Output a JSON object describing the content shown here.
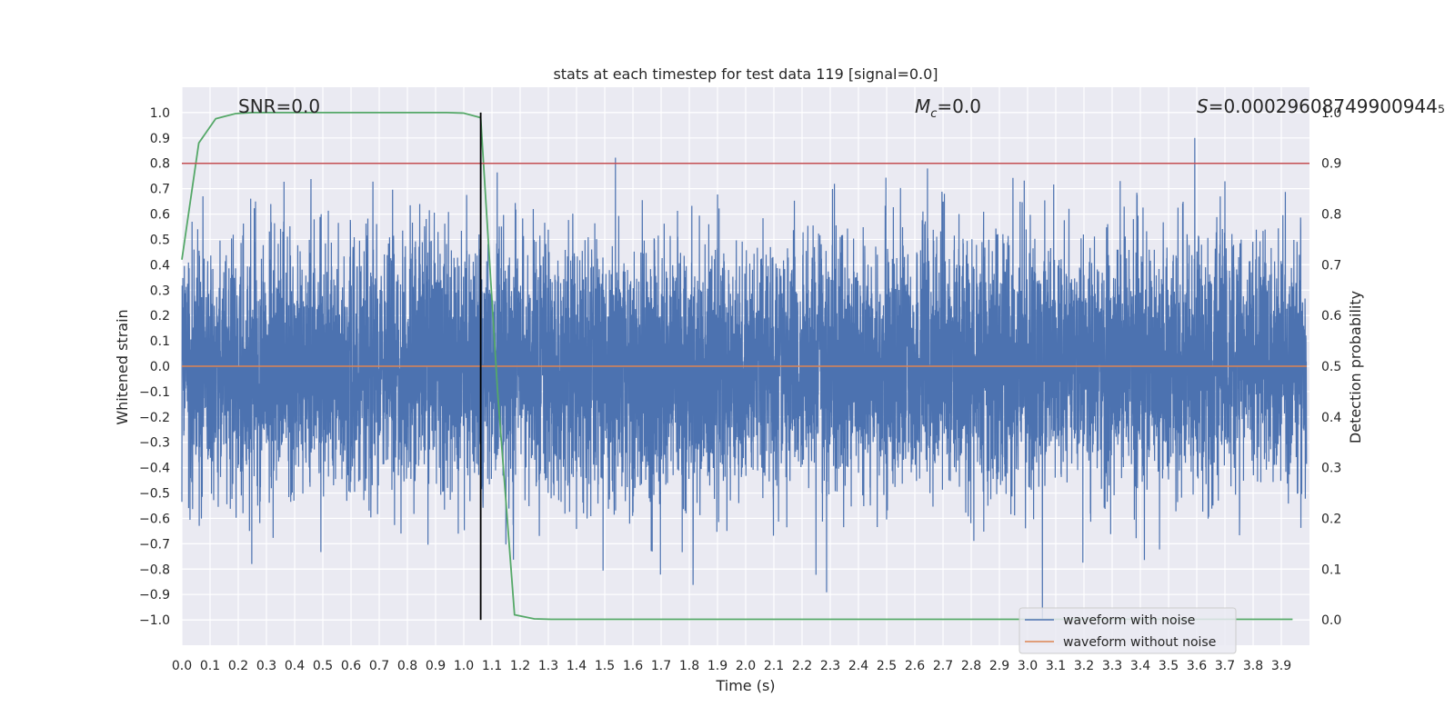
{
  "chart_data": {
    "type": "line",
    "title": "stats at each timestep for test data 119 [signal=0.0]",
    "xlabel": "Time (s)",
    "ylabel": "Whitened strain",
    "ylabel_right": "Detection probability",
    "xlim": [
      0.0,
      4.0
    ],
    "ylim": [
      -1.1,
      1.1
    ],
    "ylim_right": [
      -0.05,
      1.05
    ],
    "x_ticks": [
      0.0,
      0.1,
      0.2,
      0.3,
      0.4,
      0.5,
      0.6,
      0.7,
      0.8,
      0.9,
      1.0,
      1.1,
      1.2,
      1.3,
      1.4,
      1.5,
      1.6,
      1.7,
      1.8,
      1.9,
      2.0,
      2.1,
      2.2,
      2.3,
      2.4,
      2.5,
      2.6,
      2.7,
      2.8,
      2.9,
      3.0,
      3.1,
      3.2,
      3.3,
      3.4,
      3.5,
      3.6,
      3.7,
      3.8,
      3.9
    ],
    "x_tick_labels": [
      "0.0",
      "0.1",
      "0.2",
      "0.3",
      "0.4",
      "0.5",
      "0.6",
      "0.7",
      "0.8",
      "0.9",
      "1.0",
      "1.1",
      "1.2",
      "1.3",
      "1.4",
      "1.5",
      "1.6",
      "1.7",
      "1.8",
      "1.9",
      "2.0",
      "2.1",
      "2.2",
      "2.3",
      "2.4",
      "2.5",
      "2.6",
      "2.7",
      "2.8",
      "2.9",
      "3.0",
      "3.1",
      "3.2",
      "3.3",
      "3.4",
      "3.5",
      "3.6",
      "3.7",
      "3.8",
      "3.9"
    ],
    "y_ticks": [
      1.0,
      0.9,
      0.8,
      0.7,
      0.6,
      0.5,
      0.4,
      0.3,
      0.2,
      0.1,
      0.0,
      -0.1,
      -0.2,
      -0.3,
      -0.4,
      -0.5,
      -0.6,
      -0.7,
      -0.8,
      -0.9,
      -1.0
    ],
    "y_tick_labels": [
      "1.0",
      "0.9",
      "0.8",
      "0.7",
      "0.6",
      "0.5",
      "0.4",
      "0.3",
      "0.2",
      "0.1",
      "0.0",
      "−0.1",
      "−0.2",
      "−0.3",
      "−0.4",
      "−0.5",
      "−0.6",
      "−0.7",
      "−0.8",
      "−0.9",
      "−1.0"
    ],
    "y_right_ticks": [
      1.0,
      0.9,
      0.8,
      0.7,
      0.6,
      0.5,
      0.4,
      0.3,
      0.2,
      0.1,
      0.0
    ],
    "y_right_tick_labels": [
      "1.0",
      "0.9",
      "0.8",
      "0.7",
      "0.6",
      "0.5",
      "0.4",
      "0.3",
      "0.2",
      "0.1",
      "0.0"
    ],
    "series": [
      {
        "name": "waveform with noise",
        "color": "#4c72b0",
        "kind": "noise",
        "sample_rate": 2048,
        "duration": 3.99,
        "amplitude": 0.25,
        "clip": 1.0,
        "seed": 119
      },
      {
        "name": "waveform without noise",
        "color": "#dd8452",
        "kind": "flat",
        "x": [
          0.0,
          3.99
        ],
        "y": [
          0.0,
          0.0
        ]
      },
      {
        "name": "detection probability",
        "color": "#55a868",
        "axis": "right",
        "x": [
          0.0,
          0.06,
          0.12,
          0.19,
          0.25,
          0.31,
          0.37,
          0.44,
          0.5,
          0.56,
          0.62,
          0.69,
          0.75,
          0.81,
          0.87,
          0.94,
          1.0,
          1.06,
          1.12,
          1.18,
          1.25,
          1.31,
          1.37,
          1.44,
          1.5,
          1.56,
          1.62,
          1.69,
          1.75,
          1.81,
          1.87,
          1.94,
          2.0,
          2.06,
          2.12,
          2.18,
          2.25,
          2.31,
          2.37,
          2.44,
          2.5,
          2.56,
          2.62,
          2.69,
          2.75,
          2.81,
          2.87,
          2.94,
          3.0,
          3.06,
          3.12,
          3.18,
          3.25,
          3.31,
          3.37,
          3.44,
          3.5,
          3.56,
          3.62,
          3.69,
          3.75,
          3.81,
          3.87,
          3.94
        ],
        "y": [
          0.71,
          0.94,
          0.988,
          0.998,
          1.0,
          1.0,
          1.0,
          1.0,
          1.0,
          1.0,
          1.0,
          1.0,
          1.0,
          1.0,
          1.0,
          1.0,
          0.999,
          0.99,
          0.45,
          0.01,
          0.002,
          0.001,
          0.001,
          0.001,
          0.001,
          0.001,
          0.001,
          0.001,
          0.001,
          0.001,
          0.001,
          0.001,
          0.001,
          0.001,
          0.001,
          0.001,
          0.001,
          0.001,
          0.001,
          0.001,
          0.001,
          0.001,
          0.001,
          0.001,
          0.001,
          0.001,
          0.001,
          0.001,
          0.001,
          0.001,
          0.001,
          0.001,
          0.001,
          0.001,
          0.001,
          0.001,
          0.001,
          0.001,
          0.001,
          0.001,
          0.001,
          0.001,
          0.001,
          0.001
        ]
      }
    ],
    "threshold": {
      "value": 0.9,
      "axis": "right",
      "color": "#c44e52"
    },
    "marker_line": {
      "x": 1.06,
      "y": [
        -1.0,
        1.0
      ],
      "color": "#000000"
    },
    "annotations": [
      "SNR=0.0",
      "M",
      "c",
      "=0.0",
      "S",
      "=0.00029608749900944₅"
    ],
    "annotation_texts": {
      "snr": "SNR=0.0",
      "mc_symbol": "M",
      "mc_sub": "c",
      "mc_value": "=0.0",
      "s_symbol": "S",
      "s_value": "=0.00029608749900944₅"
    },
    "legend": {
      "location": "bottom-right",
      "entries": [
        "waveform with noise",
        "waveform without noise"
      ]
    },
    "grid": true,
    "background": "#eaeaf2"
  }
}
